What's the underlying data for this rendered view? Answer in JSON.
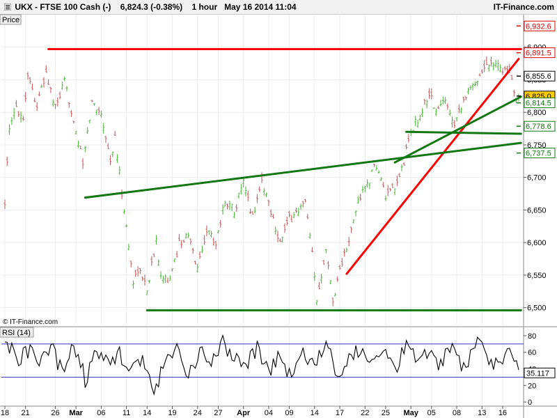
{
  "header": {
    "symbol": "UKX - FTSE 100 Cash (-)",
    "quote": "6,824.3 (-0.38%)",
    "timeframe": "1 hour",
    "datetime": "May 16 2014 11:04",
    "brand": "IT-Finance.com"
  },
  "price_panel": {
    "tab_label": "Price",
    "copyright": "© IT-Finance.com"
  },
  "rsi_panel": {
    "tab_label": "RSI (14)",
    "current_value_label": "35.117"
  },
  "colors": {
    "up_bar": "#55bb44",
    "down_bar": "#c86464",
    "support_resistance_red": "#ff0000",
    "trend_green": "#117711",
    "rsi_line": "#000000",
    "rsi_band": "#3333cc",
    "price_tag_highlight": "#ffcc00"
  },
  "chart_data": [
    {
      "type": "ohlc",
      "title": "UKX - FTSE 100 Cash (-)",
      "ylim": [
        6475,
        6950
      ],
      "y_ticks": [
        "6,500",
        "6,550",
        "6,600",
        "6,650",
        "6,700",
        "6,750",
        "6,800",
        "6,850",
        "6,900"
      ],
      "x_ticks": [
        "18",
        "21",
        "26",
        "Mar",
        "06",
        "11",
        "14",
        "19",
        "24",
        "27",
        "Apr",
        "04",
        "09",
        "14",
        "17",
        "22",
        "25",
        "May",
        "05",
        "08",
        "13",
        "16"
      ],
      "bold_x_ticks": [
        "Mar",
        "Apr",
        "May"
      ],
      "x_tick_index": [
        0,
        9,
        22,
        31,
        42,
        53,
        62,
        73,
        84,
        93,
        104,
        115,
        124,
        135,
        146,
        157,
        166,
        177,
        186,
        197,
        208,
        217
      ],
      "bar_count": 225,
      "price_path": [
        [
          0,
          6665
        ],
        [
          2,
          6770
        ],
        [
          5,
          6810
        ],
        [
          8,
          6790
        ],
        [
          10,
          6860
        ],
        [
          14,
          6810
        ],
        [
          18,
          6860
        ],
        [
          22,
          6805
        ],
        [
          26,
          6845
        ],
        [
          30,
          6790
        ],
        [
          34,
          6720
        ],
        [
          38,
          6815
        ],
        [
          42,
          6800
        ],
        [
          46,
          6725
        ],
        [
          48,
          6760
        ],
        [
          52,
          6650
        ],
        [
          56,
          6540
        ],
        [
          58,
          6560
        ],
        [
          62,
          6530
        ],
        [
          66,
          6600
        ],
        [
          68,
          6555
        ],
        [
          72,
          6540
        ],
        [
          76,
          6600
        ],
        [
          80,
          6610
        ],
        [
          84,
          6560
        ],
        [
          88,
          6620
        ],
        [
          92,
          6600
        ],
        [
          96,
          6665
        ],
        [
          100,
          6650
        ],
        [
          104,
          6690
        ],
        [
          108,
          6640
        ],
        [
          112,
          6695
        ],
        [
          116,
          6650
        ],
        [
          120,
          6600
        ],
        [
          124,
          6635
        ],
        [
          128,
          6650
        ],
        [
          131,
          6660
        ],
        [
          134,
          6580
        ],
        [
          136,
          6510
        ],
        [
          140,
          6595
        ],
        [
          143,
          6510
        ],
        [
          146,
          6560
        ],
        [
          150,
          6600
        ],
        [
          154,
          6665
        ],
        [
          158,
          6690
        ],
        [
          162,
          6720
        ],
        [
          166,
          6670
        ],
        [
          170,
          6680
        ],
        [
          174,
          6725
        ],
        [
          177,
          6770
        ],
        [
          181,
          6795
        ],
        [
          185,
          6830
        ],
        [
          188,
          6800
        ],
        [
          192,
          6820
        ],
        [
          196,
          6785
        ],
        [
          200,
          6820
        ],
        [
          204,
          6840
        ],
        [
          208,
          6865
        ],
        [
          212,
          6880
        ],
        [
          216,
          6870
        ],
        [
          220,
          6860
        ],
        [
          223,
          6825
        ],
        [
          224,
          6824
        ]
      ],
      "price_labels": [
        {
          "value": 6932.6,
          "text": "6,932.6",
          "color": "#dd0000"
        },
        {
          "value": 6891.5,
          "text": "6,891.5",
          "color": "#dd0000"
        },
        {
          "value": 6855.6,
          "text": "6,855.6",
          "color": "#000000"
        },
        {
          "value": 6825.0,
          "text": "6,825.0",
          "color": "#000000",
          "highlight": true
        },
        {
          "value": 6814.5,
          "text": "6,814.5",
          "color": "#117711"
        },
        {
          "value": 6778.6,
          "text": "6,778.6",
          "color": "#117711"
        },
        {
          "value": 6737.5,
          "text": "6,737.5",
          "color": "#117711"
        }
      ],
      "lines": [
        {
          "color": "red",
          "points": [
            [
              19,
              6897
            ],
            [
              225,
              6897
            ]
          ]
        },
        {
          "color": "red",
          "points": [
            [
              149,
              6552
            ],
            [
              224,
              6882
            ]
          ]
        },
        {
          "color": "green",
          "points": [
            [
              35,
              6669
            ],
            [
              225,
              6753
            ]
          ]
        },
        {
          "color": "green",
          "points": [
            [
              170,
              6723
            ],
            [
              225,
              6824
            ]
          ]
        },
        {
          "color": "green",
          "points": [
            [
              175,
              6770
            ],
            [
              225,
              6767
            ]
          ]
        },
        {
          "color": "green",
          "points": [
            [
              62,
              6496
            ],
            [
              225,
              6496
            ]
          ]
        }
      ]
    },
    {
      "type": "line",
      "title": "RSI (14)",
      "ylim": [
        -5,
        90
      ],
      "y_ticks": [
        "0",
        "20",
        "40",
        "60",
        "80"
      ],
      "bands": [
        30,
        70
      ],
      "last_value": 35.117,
      "path": [
        [
          0,
          82
        ],
        [
          5,
          50
        ],
        [
          10,
          62
        ],
        [
          15,
          45
        ],
        [
          20,
          66
        ],
        [
          25,
          38
        ],
        [
          30,
          70
        ],
        [
          35,
          28
        ],
        [
          40,
          58
        ],
        [
          45,
          45
        ],
        [
          50,
          60
        ],
        [
          55,
          38
        ],
        [
          60,
          52
        ],
        [
          65,
          8
        ],
        [
          70,
          48
        ],
        [
          75,
          62
        ],
        [
          80,
          28
        ],
        [
          85,
          60
        ],
        [
          90,
          45
        ],
        [
          95,
          70
        ],
        [
          100,
          55
        ],
        [
          105,
          45
        ],
        [
          110,
          65
        ],
        [
          115,
          40
        ],
        [
          120,
          55
        ],
        [
          125,
          28
        ],
        [
          130,
          60
        ],
        [
          135,
          40
        ],
        [
          140,
          70
        ],
        [
          145,
          30
        ],
        [
          150,
          55
        ],
        [
          155,
          65
        ],
        [
          160,
          45
        ],
        [
          165,
          60
        ],
        [
          170,
          40
        ],
        [
          175,
          72
        ],
        [
          180,
          55
        ],
        [
          185,
          62
        ],
        [
          190,
          45
        ],
        [
          195,
          70
        ],
        [
          200,
          40
        ],
        [
          205,
          72
        ],
        [
          210,
          55
        ],
        [
          215,
          45
        ],
        [
          220,
          70
        ],
        [
          224,
          35
        ]
      ]
    }
  ]
}
